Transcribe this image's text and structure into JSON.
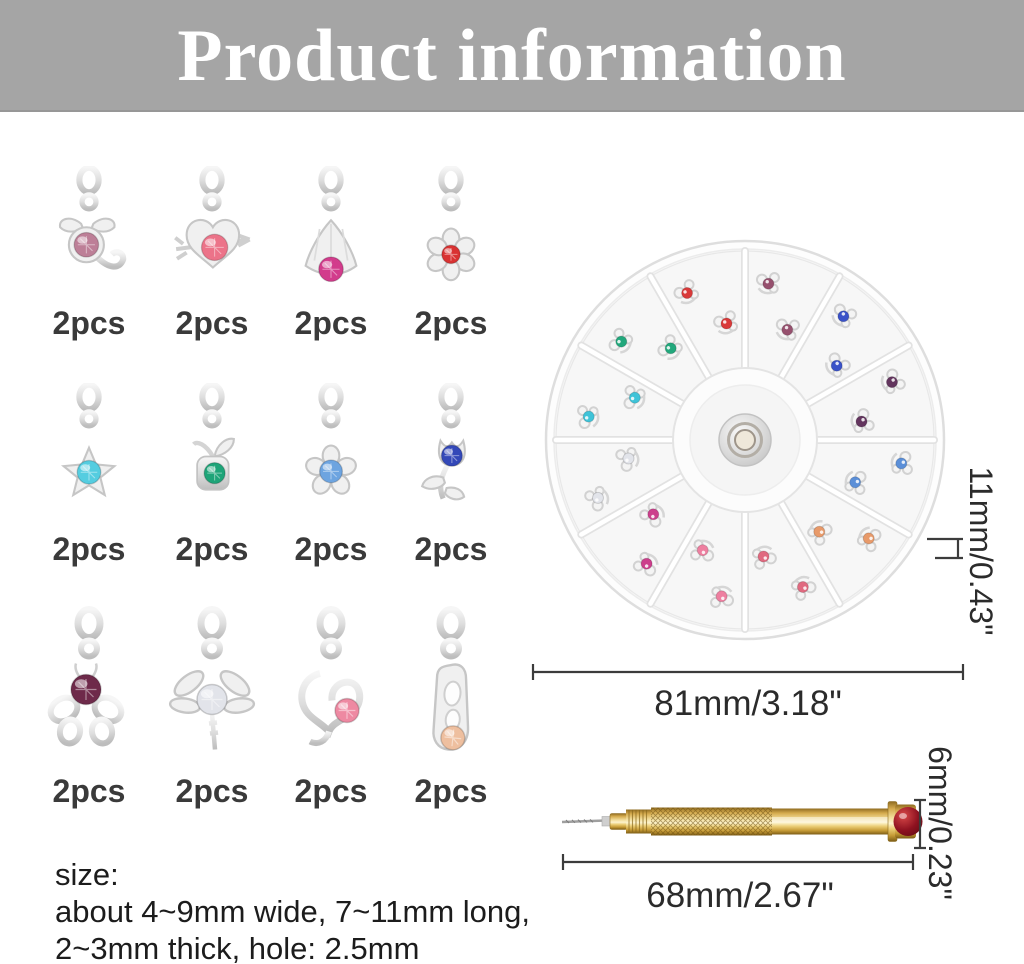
{
  "header": {
    "title": "Product information",
    "bg_color": "#a5a5a5",
    "text_color": "#ffffff"
  },
  "charms": [
    {
      "name": "scorpion charm",
      "label": "2pcs",
      "gem_color": "#bd7f97"
    },
    {
      "name": "heart-arrow charm",
      "label": "2pcs",
      "gem_color": "#ec7389"
    },
    {
      "name": "fan charm",
      "label": "2pcs",
      "gem_color": "#d23c8c"
    },
    {
      "name": "flower charm",
      "label": "2pcs",
      "gem_color": "#d93232"
    },
    {
      "name": "star charm",
      "label": "2pcs",
      "gem_color": "#55cde0"
    },
    {
      "name": "apple charm",
      "label": "2pcs",
      "gem_color": "#1ea478"
    },
    {
      "name": "flower charm",
      "label": "2pcs",
      "gem_color": "#6da4e0"
    },
    {
      "name": "tulip charm",
      "label": "2pcs",
      "gem_color": "#3348b8"
    },
    {
      "name": "butterfly charm",
      "label": "2pcs",
      "gem_color": "#6e2a4a"
    },
    {
      "name": "dragonfly charm",
      "label": "2pcs",
      "gem_color": "#e2e4ea"
    },
    {
      "name": "heart charm",
      "label": "2pcs",
      "gem_color": "#ee89a2"
    },
    {
      "name": "slipper charm",
      "label": "2pcs",
      "gem_color": "#eebf9f"
    }
  ],
  "wheel": {
    "compartments": 12,
    "charms_per_compartment": 2,
    "compartment_gem_colors": [
      "#d93a3a",
      "#96506e",
      "#3a52c8",
      "#63355e",
      "#5b8fd8",
      "#e89a6a",
      "#e06a80",
      "#ee7fa0",
      "#cc3f8c",
      "#e2e4ea",
      "#3fc3d8",
      "#22a87c"
    ],
    "diameter_label": "81mm/3.18\"",
    "height_label": "11mm/0.43\""
  },
  "drill": {
    "length_label": "68mm/2.67\"",
    "diameter_label": "6mm/0.23\"",
    "handle_color": "#d5ab4e",
    "gem_color": "#8e1220"
  },
  "size_note": {
    "line1": "size:",
    "line2": "about 4~9mm wide, 7~11mm long,",
    "line3": "2~3mm thick, hole: 2.5mm"
  }
}
